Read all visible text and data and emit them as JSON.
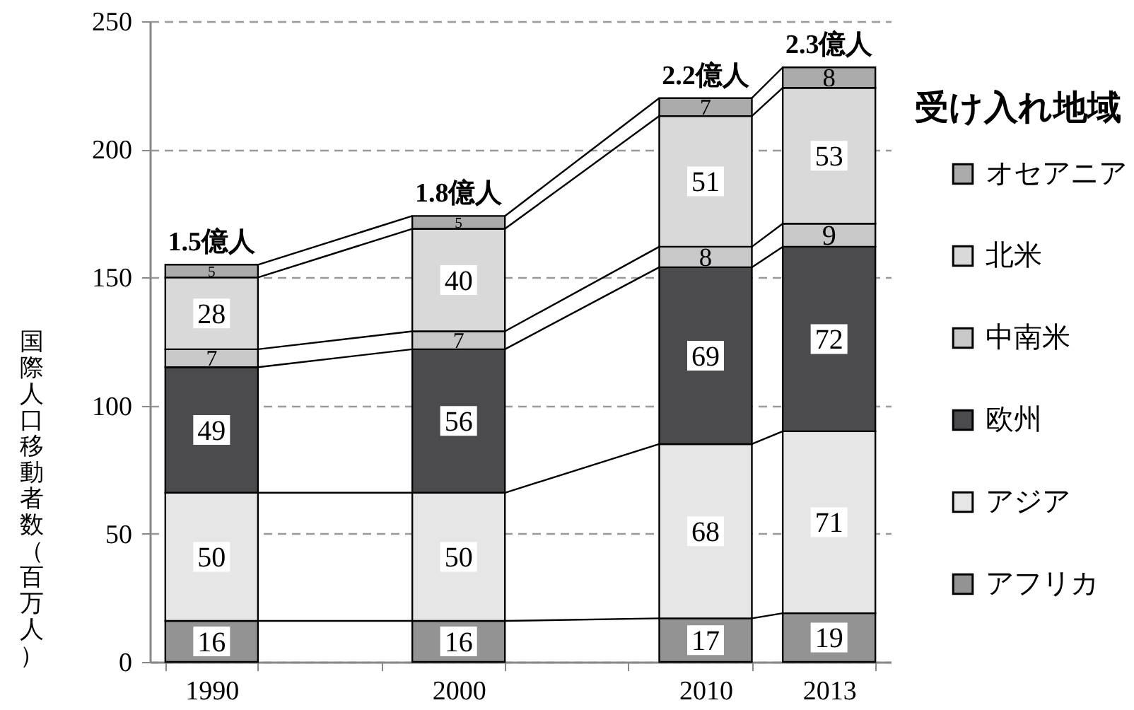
{
  "chart_data": {
    "type": "bar",
    "stacked": true,
    "ylabel": "国際人口移動者数（百万人）",
    "legend_title": "受け入れ地域",
    "categories": [
      "1990",
      null,
      "2000",
      null,
      "2010",
      "2013"
    ],
    "series": [
      {
        "name": "アフリカ",
        "color": "#939393",
        "values": [
          16,
          null,
          16,
          null,
          17,
          19
        ]
      },
      {
        "name": "アジア",
        "color": "#e6e6e6",
        "values": [
          50,
          null,
          50,
          null,
          68,
          71
        ]
      },
      {
        "name": "欧州",
        "color": "#4b4b4d",
        "values": [
          49,
          null,
          56,
          null,
          69,
          72
        ]
      },
      {
        "name": "中南米",
        "color": "#c8c8c8",
        "values": [
          7,
          null,
          7,
          null,
          8,
          9
        ]
      },
      {
        "name": "北米",
        "color": "#d9d9d9",
        "values": [
          28,
          null,
          40,
          null,
          51,
          53
        ]
      },
      {
        "name": "オセアニア",
        "color": "#ababab",
        "values": [
          5,
          null,
          5,
          null,
          7,
          8
        ]
      }
    ],
    "annotations": [
      {
        "text": "1.5億人",
        "x": "1990",
        "y": 155
      },
      {
        "text": "1.8億人",
        "x": "2000",
        "y": 174
      },
      {
        "text": "2.2億人",
        "x": "2010",
        "y": 220
      },
      {
        "text": "2.3億人",
        "x": "2013",
        "y": 232
      }
    ],
    "ylim": [
      0,
      250
    ],
    "yticks": [
      0,
      50,
      100,
      150,
      200,
      250
    ],
    "grid": "y",
    "legend": "right",
    "data_labels": true
  }
}
